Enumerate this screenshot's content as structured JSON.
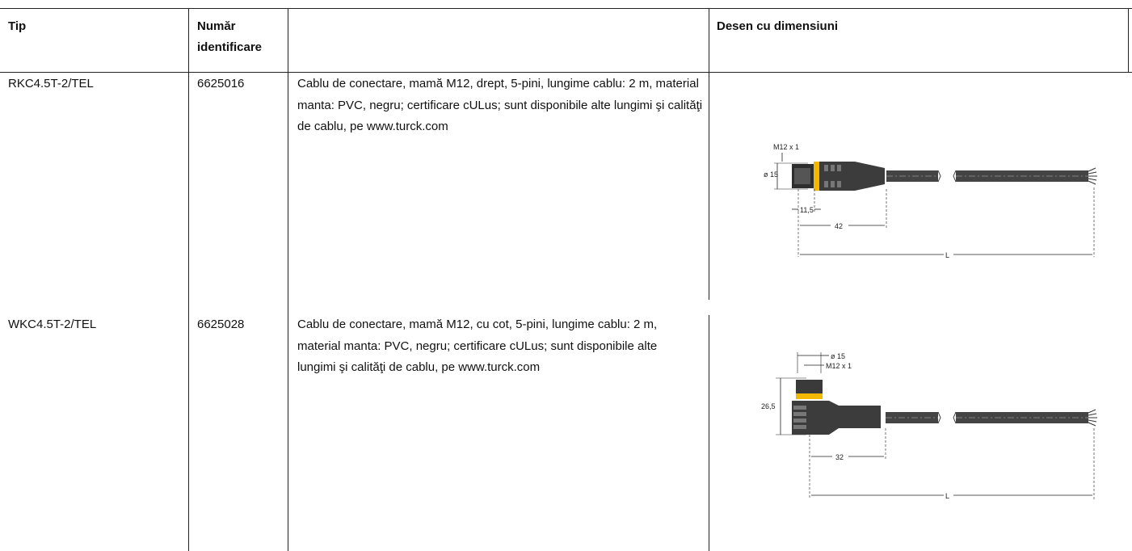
{
  "table": {
    "headers": {
      "tip": "Tip",
      "numar": "Număr identificare",
      "desc": "",
      "desen": "Desen cu dimensiuni"
    },
    "rows": [
      {
        "tip": "RKC4.5T-2/TEL",
        "id": "6625016",
        "description": "Cablu de conectare, mamă M12, drept, 5-pini, lungime cablu: 2 m, material manta: PVC, negru; certificare cULus; sunt disponibile alte lungimi şi calităţi de cablu, pe www.turck.com",
        "drawing": {
          "thread": "M12 x 1",
          "diameter": "ø 15",
          "dim_a": "11,5",
          "dim_b": "42",
          "length": "L"
        }
      },
      {
        "tip": "WKC4.5T-2/TEL",
        "id": "6625028",
        "description": "Cablu de conectare, mamă M12, cu cot, 5-pini, lungime cablu: 2 m, material manta: PVC, negru; certificare cULus; sunt disponibile alte lungimi şi calităţi de cablu, pe www.turck.com",
        "drawing": {
          "diameter": "ø 15",
          "thread": "M12 x 1",
          "height": "26,5",
          "dim_b": "32",
          "length": "L"
        }
      }
    ]
  },
  "colors": {
    "grid": "#222222",
    "accent": "#f5b800",
    "body": "#3c3c3c"
  }
}
